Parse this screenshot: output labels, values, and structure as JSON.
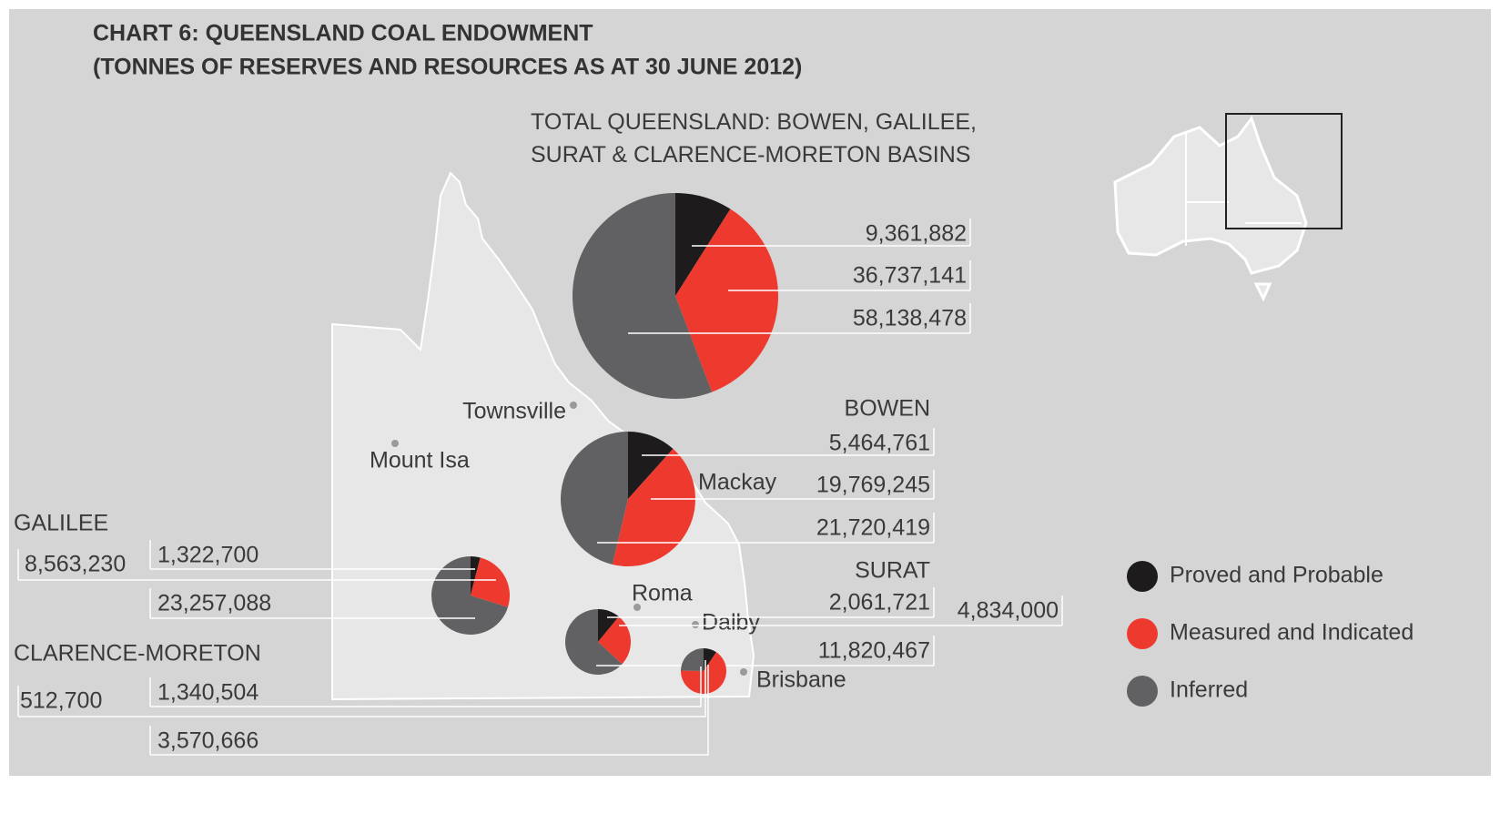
{
  "title": "CHART 6: QUEENSLAND COAL ENDOWMENT",
  "subtitle": "(TONNES OF RESERVES AND RESOURCES AS AT 30 JUNE 2012)",
  "places": [
    "Townsville",
    "Mount Isa",
    "Mackay",
    "Roma",
    "Dalby",
    "Brisbane"
  ],
  "chart_data": [
    {
      "type": "pie",
      "title": "TOTAL QUEENSLAND: BOWEN, GALILEE, SURAT & CLARENCE-MORETON BASINS",
      "categories": [
        "Proved and Probable",
        "Measured and Indicated",
        "Inferred"
      ],
      "colors": [
        "#1e1b1c",
        "#ee3a2e",
        "#616163"
      ],
      "values": [
        9361882,
        36737141,
        58138478
      ],
      "value_labels": [
        "9,361,882",
        "36,737,141",
        "58,138,478"
      ]
    },
    {
      "type": "pie",
      "title": "BOWEN",
      "categories": [
        "Proved and Probable",
        "Measured and Indicated",
        "Inferred"
      ],
      "colors": [
        "#1e1b1c",
        "#ee3a2e",
        "#616163"
      ],
      "values": [
        5464761,
        19769245,
        21720419
      ],
      "value_labels": [
        "5,464,761",
        "19,769,245",
        "21,720,419"
      ]
    },
    {
      "type": "pie",
      "title": "GALILEE",
      "categories": [
        "Proved and Probable",
        "Measured and Indicated",
        "Inferred"
      ],
      "colors": [
        "#1e1b1c",
        "#ee3a2e",
        "#616163"
      ],
      "values": [
        1322700,
        8563230,
        23257088
      ],
      "value_labels": [
        "1,322,700",
        "8,563,230",
        "23,257,088"
      ]
    },
    {
      "type": "pie",
      "title": "SURAT",
      "categories": [
        "Proved and Probable",
        "Measured and Indicated",
        "Inferred"
      ],
      "colors": [
        "#1e1b1c",
        "#ee3a2e",
        "#616163"
      ],
      "values": [
        2061721,
        4834000,
        11820467
      ],
      "value_labels": [
        "2,061,721",
        "4,834,000",
        "11,820,467"
      ]
    },
    {
      "type": "pie",
      "title": "CLARENCE-MORETON",
      "categories": [
        "Proved and Probable",
        "Measured and Indicated",
        "Inferred"
      ],
      "colors": [
        "#1e1b1c",
        "#ee3a2e",
        "#616163"
      ],
      "values": [
        512700,
        3570666,
        1340504
      ],
      "value_labels": [
        "512,700",
        "3,570,666",
        "1,340,504"
      ]
    }
  ]
}
